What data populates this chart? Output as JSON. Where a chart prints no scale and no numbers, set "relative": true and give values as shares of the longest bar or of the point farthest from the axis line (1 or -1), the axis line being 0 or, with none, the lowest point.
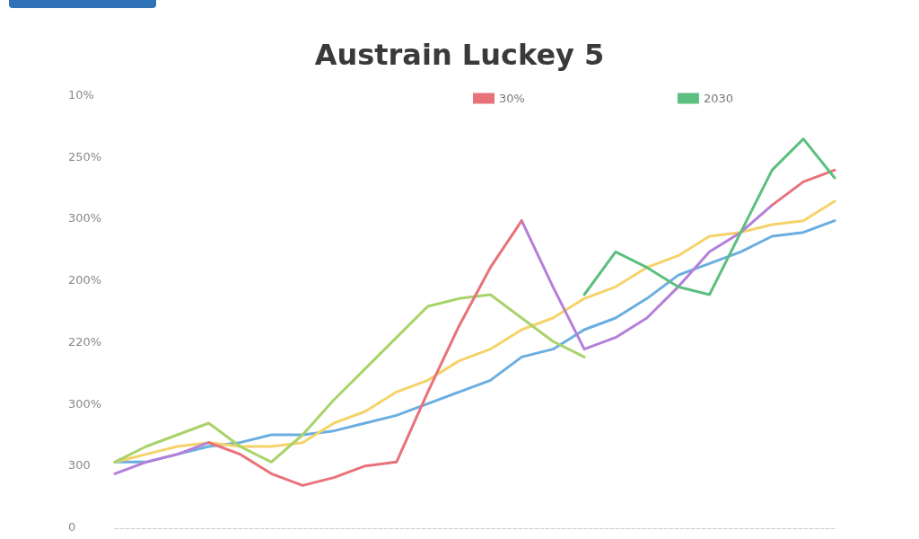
{
  "chart_data": {
    "type": "line",
    "title": "Austrain Luckey 5",
    "categories": [
      null,
      null,
      null,
      null,
      null,
      null,
      null,
      null,
      null,
      null,
      null,
      null,
      null,
      null,
      null,
      null,
      null,
      null,
      null,
      null,
      null,
      null,
      null,
      null
    ],
    "series": [
      {
        "color": "#6aaee0",
        "values": [
          0.17,
          0.17,
          0.19,
          0.21,
          0.22,
          0.24,
          0.24,
          0.25,
          0.27,
          0.29,
          0.32,
          0.35,
          0.38,
          0.44,
          0.46,
          0.51,
          0.54,
          0.59,
          0.65,
          0.68,
          0.71,
          0.75,
          0.76,
          0.79
        ]
      },
      {
        "color": "#f5d36a",
        "values": [
          0.17,
          0.19,
          0.21,
          0.22,
          0.21,
          0.21,
          0.22,
          0.27,
          0.3,
          0.35,
          0.38,
          0.43,
          0.46,
          0.51,
          0.54,
          0.59,
          0.62,
          0.67,
          0.7,
          0.75,
          0.76,
          0.78,
          0.79,
          0.84
        ]
      },
      {
        "color": "#a8d36a",
        "values": [
          0.17,
          0.21,
          0.24,
          0.27,
          0.21,
          0.17,
          0.24,
          0.33,
          0.41,
          0.49,
          0.57,
          0.59,
          0.6,
          0.54,
          0.48,
          0.44,
          null,
          null,
          null,
          null,
          null,
          null,
          null,
          null
        ]
      },
      {
        "color": "#b57fd8",
        "values": [
          0.14,
          0.17,
          0.19,
          0.22,
          null,
          null,
          null,
          null,
          null,
          null,
          null,
          null,
          null,
          0.79,
          0.62,
          0.46,
          0.49,
          0.54,
          0.62,
          0.71,
          0.76,
          0.83,
          null,
          null
        ]
      },
      {
        "name": "30%",
        "color": "#e8727a",
        "values": [
          null,
          null,
          null,
          0.22,
          0.19,
          0.14,
          0.11,
          0.13,
          0.16,
          0.17,
          0.35,
          0.52,
          0.67,
          0.79,
          null,
          null,
          null,
          null,
          null,
          null,
          null,
          0.83,
          0.89,
          0.92
        ]
      },
      {
        "name": "2030",
        "color": "#5cbf7f",
        "values": [
          null,
          null,
          null,
          null,
          null,
          null,
          null,
          null,
          null,
          null,
          null,
          null,
          null,
          null,
          null,
          0.6,
          0.71,
          0.67,
          0.62,
          0.6,
          0.76,
          0.92,
          1,
          0.9
        ]
      }
    ],
    "relative": true,
    "annotations": [
      "10%",
      "250%",
      "300%",
      "200%",
      "220%",
      "300%",
      "300",
      "0"
    ],
    "grid": false,
    "legend": "top right",
    "marker": "none",
    "line_style": "solid"
  }
}
